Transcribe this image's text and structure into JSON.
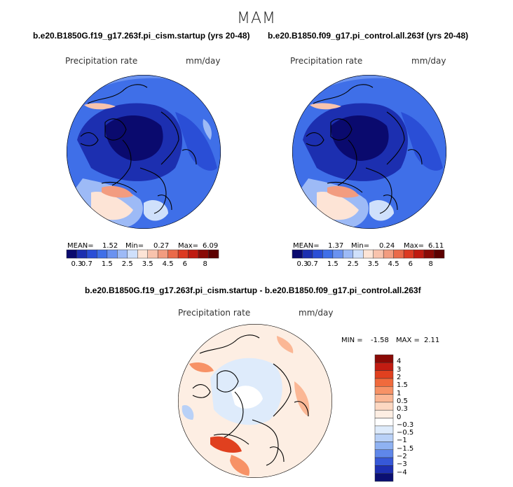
{
  "figure": {
    "season": "MAM"
  },
  "panels": {
    "left": {
      "case": "b.e20.B1850G.f19_g17.263f.pi_cism.startup (yrs 20-48)",
      "variable": "Precipitation rate",
      "units": "mm/day",
      "mean_label": "MEAN=",
      "mean": "1.52",
      "min_label": "Min=",
      "min": "0.27",
      "max_label": "Max=",
      "max": "6.09"
    },
    "right": {
      "case": "b.e20.B1850.f09_g17.pi_control.all.263f (yrs 20-48)",
      "variable": "Precipitation rate",
      "units": "mm/day",
      "mean_label": "MEAN=",
      "mean": "1.37",
      "min_label": "Min=",
      "min": "0.24",
      "max_label": "Max=",
      "max": "6.11"
    },
    "diff": {
      "case": "b.e20.B1850G.f19_g17.263f.pi_cism.startup - b.e20.B1850.f09_g17.pi_control.all.263f",
      "variable": "Precipitation rate",
      "units": "mm/day",
      "min_label": "MIN =",
      "min": "-1.58",
      "max_label": "MAX =",
      "max": "2.11"
    }
  },
  "colorbars": {
    "absolute": {
      "ticks": [
        "0.3",
        "0.7",
        "1",
        "1.5",
        "2",
        "2.5",
        "3",
        "3.5",
        "4",
        "4.5",
        "5",
        "6",
        "7",
        "8"
      ],
      "labels_shown": [
        "0.3",
        "0.7",
        "1.5",
        "2.5",
        "3.5",
        "4.5",
        "6",
        "8"
      ],
      "colors": [
        "#0a0a6e",
        "#1c2fb0",
        "#2a4ed6",
        "#3f6fe8",
        "#6a92f0",
        "#9dbaf6",
        "#cfe0fb",
        "#fde4d6",
        "#f8c3ad",
        "#f29c80",
        "#ea6a4a",
        "#dc3a22",
        "#bf1a10",
        "#8a0a06",
        "#5c0000"
      ]
    },
    "difference": {
      "ticks": [
        "4",
        "3",
        "2",
        "1.5",
        "1",
        "0.5",
        "0.3",
        "0",
        "−0.3",
        "−0.5",
        "−1",
        "−1.5",
        "−2",
        "−3",
        "−4"
      ],
      "colors": [
        "#8a0a06",
        "#c21c12",
        "#e0401f",
        "#f06a3c",
        "#f79266",
        "#fbb795",
        "#fdd8c2",
        "#fdeee3",
        "#ffffff",
        "#deebfb",
        "#b9d1f7",
        "#8fb2f2",
        "#5f87ea",
        "#3658d8",
        "#1d2fb2",
        "#0b0f72"
      ]
    }
  },
  "chart_data": {
    "type": "map",
    "projection": "north polar stereographic",
    "maps": [
      {
        "name": "b.e20.B1850G.f19_g17.263f.pi_cism.startup",
        "field": "Precipitation rate",
        "units": "mm/day",
        "mean": 1.52,
        "min": 0.27,
        "max": 6.09
      },
      {
        "name": "b.e20.B1850.f09_g17.pi_control.all.263f",
        "field": "Precipitation rate",
        "units": "mm/day",
        "mean": 1.37,
        "min": 0.24,
        "max": 6.11
      },
      {
        "name": "difference",
        "field": "Precipitation rate",
        "units": "mm/day",
        "min": -1.58,
        "max": 2.11
      }
    ],
    "contour_levels_absolute": [
      0.3,
      0.7,
      1,
      1.5,
      2,
      2.5,
      3,
      3.5,
      4,
      4.5,
      5,
      6,
      7,
      8
    ],
    "contour_levels_difference": [
      -4,
      -3,
      -2,
      -1.5,
      -1,
      -0.5,
      -0.3,
      0,
      0.3,
      0.5,
      1,
      1.5,
      2,
      3,
      4
    ]
  }
}
